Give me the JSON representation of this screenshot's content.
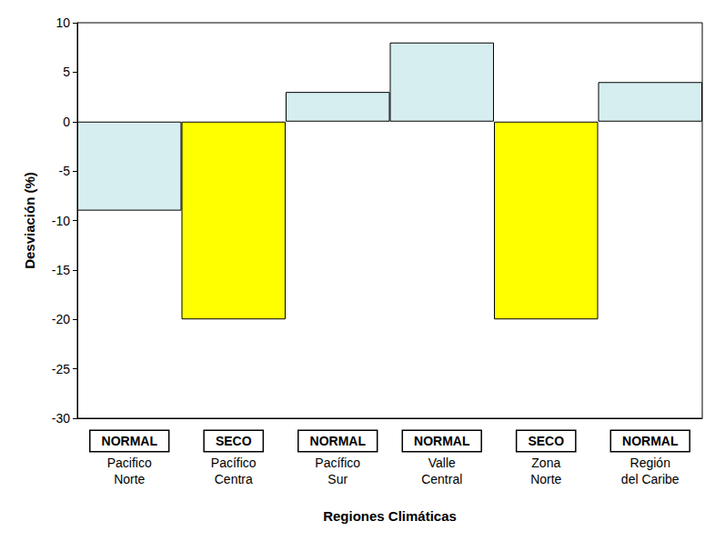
{
  "chart_data": {
    "type": "bar",
    "x_label": "Regiones Climáticas",
    "y_label": "Desviación (%)",
    "categories": [
      "Pacifico Norte",
      "Pacífico Centra",
      "Pacífico Sur",
      "Valle Central",
      "Zona Norte",
      "Región del Caribe"
    ],
    "values": [
      -9,
      -20,
      3,
      8,
      -20,
      4
    ],
    "annotations": [
      "NORMAL",
      "SECO",
      "NORMAL",
      "NORMAL",
      "SECO",
      "NORMAL"
    ],
    "colors": [
      "#d6eef0",
      "#ffff00",
      "#d6eef0",
      "#d6eef0",
      "#ffff00",
      "#d6eef0"
    ],
    "ylim": [
      -30,
      10
    ],
    "yticks": [
      -30,
      -25,
      -20,
      -15,
      -10,
      -5,
      0,
      5,
      10
    ],
    "grid": false
  }
}
